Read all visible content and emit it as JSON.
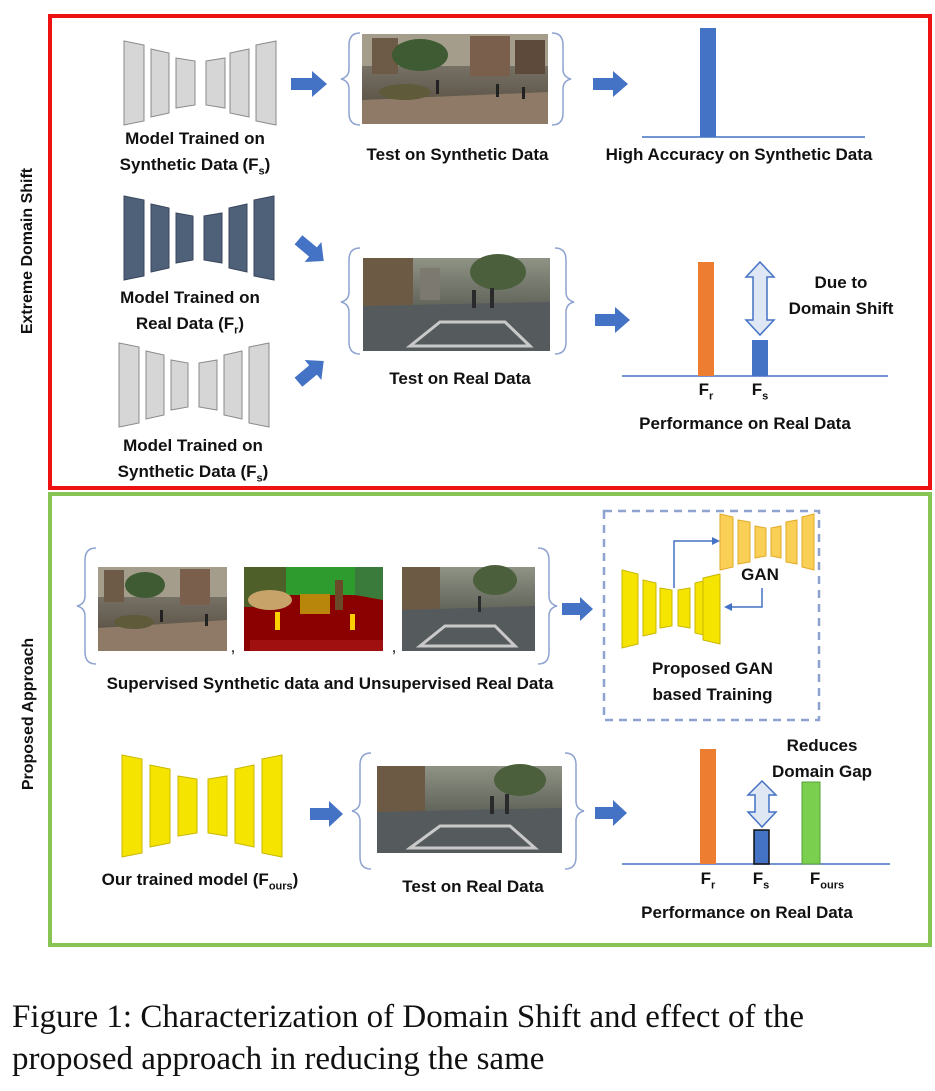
{
  "colors": {
    "top_panel_border": "#ee1111",
    "bottom_panel_border": "#88c454",
    "synthetic_model": "#d6d6d6",
    "real_model": "#4f6079",
    "gan_model": "#f5e400",
    "gan_top": "#f9cf56",
    "arrow": "#4472c4",
    "bar_high": "#4472c4",
    "bar_fr": "#ed7d31",
    "bar_fs": "#4472c4",
    "bar_fours": "#7bcf4f"
  },
  "top_panel": {
    "side_label": "Extreme Domain Shift",
    "model_synthetic_1": {
      "line1": "Model Trained on",
      "line2": "Synthetic Data (F",
      "sub": "s",
      "close": ")"
    },
    "test_synthetic": "Test on Synthetic Data",
    "high_accuracy": "High Accuracy on Synthetic Data",
    "model_real": {
      "line1": "Model Trained on",
      "line2": "Real Data (F",
      "sub": "r",
      "close": ")"
    },
    "test_real": "Test on Real Data",
    "model_synthetic_2": {
      "line1": "Model Trained on",
      "line2": "Synthetic Data (F",
      "sub": "s",
      "close": ")"
    },
    "due_to_line1": "Due to",
    "due_to_line2": "Domain Shift",
    "bar_fr": {
      "main": "F",
      "sub": "r"
    },
    "bar_fs": {
      "main": "F",
      "sub": "s"
    },
    "performance": "Performance on Real Data"
  },
  "bottom_panel": {
    "side_label": "Proposed Approach",
    "comma": ",",
    "data_caption": "Supervised Synthetic data and Unsupervised Real Data",
    "gan_label": "GAN",
    "proposed_line1": "Proposed GAN",
    "proposed_line2": "based Training",
    "our_model": {
      "main": "Our trained model (F",
      "sub": "ours",
      "close": ")"
    },
    "test_real": "Test on Real Data",
    "reduces_line1": "Reduces",
    "reduces_line2": "Domain Gap",
    "bar_fr": {
      "main": "F",
      "sub": "r"
    },
    "bar_fs": {
      "main": "F",
      "sub": "s"
    },
    "bar_fours": {
      "main": "F",
      "sub": "ours"
    },
    "performance": "Performance on Real Data"
  },
  "caption_line1": "Figure 1: Characterization of Domain Shift and effect of the",
  "caption_line2": "proposed approach in reducing the same"
}
